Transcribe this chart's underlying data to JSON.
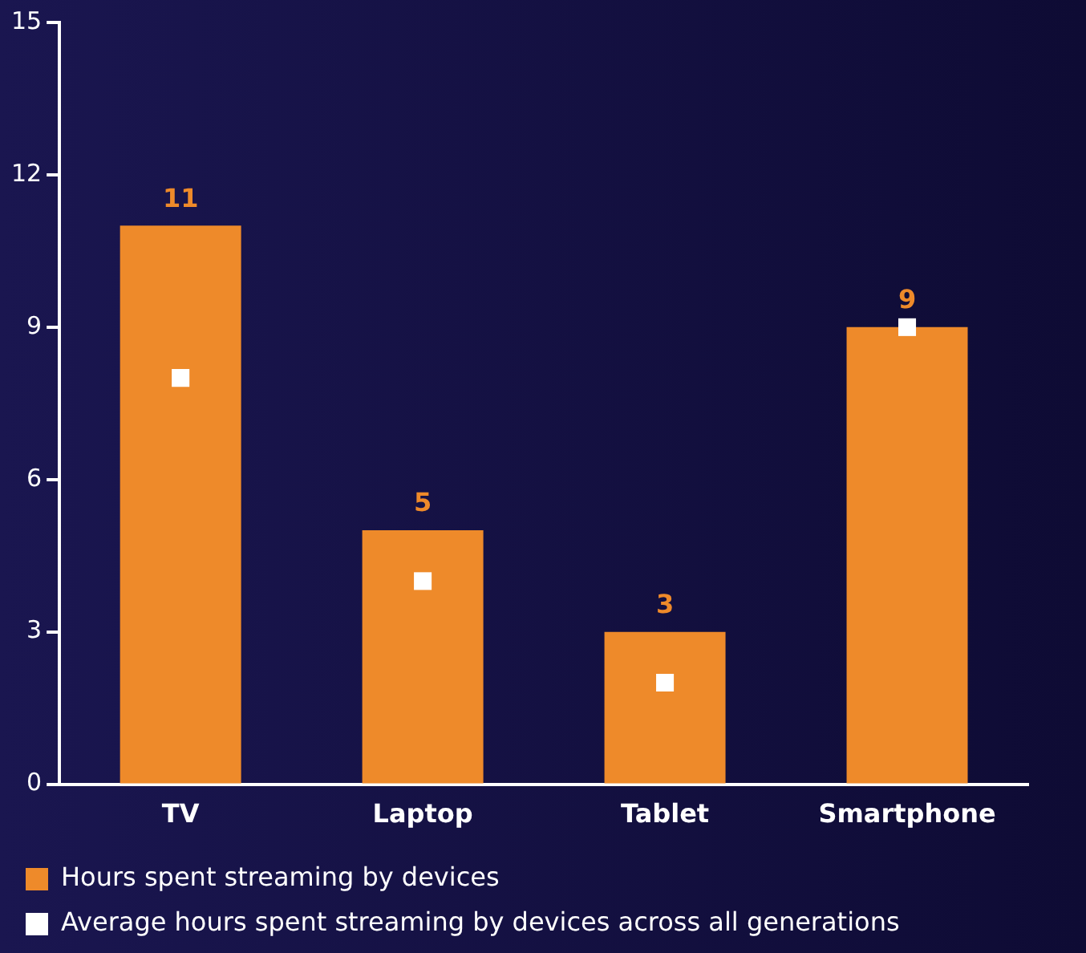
{
  "chart_data": {
    "type": "bar",
    "categories": [
      "TV",
      "Laptop",
      "Tablet",
      "Smartphone"
    ],
    "series": [
      {
        "name": "Hours spent streaming by devices",
        "color": "#ee8a2a",
        "values": [
          11,
          5,
          3,
          9
        ],
        "value_labels": [
          "11",
          "5",
          "3",
          "9"
        ]
      },
      {
        "name": "Average hours spent streaming by devices across all generations",
        "type": "scatter",
        "marker": "square",
        "color": "#ffffff",
        "values": [
          8,
          4,
          2,
          9
        ]
      }
    ],
    "ylim": [
      0,
      15
    ],
    "yticks": [
      0,
      3,
      6,
      9,
      12,
      15
    ],
    "grid": false,
    "legend": "bottom"
  }
}
